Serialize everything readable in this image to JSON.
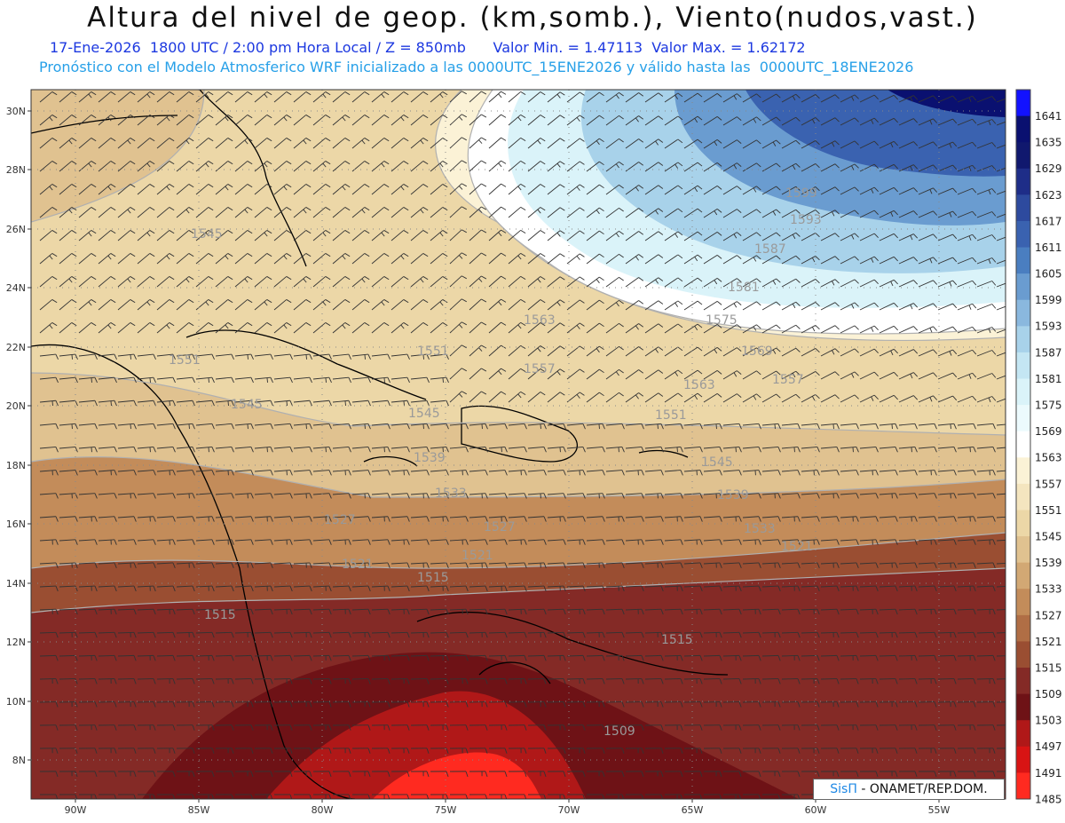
{
  "header": {
    "title": "Altura del nivel de geop. (km,somb.), Viento(nudos,vast.)",
    "line1_left": "17-Ene-2026  1800 UTC / 2:00 pm Hora Local / Z = 850mb",
    "line1_right": "Valor Min. = 1.47113  Valor Max. = 1.62172",
    "line2": "Pronóstico con el Modelo Atmosferico WRF inicializado a las 0000UTC_15ENE2026 y válido hasta las  0000UTC_18ENE2026"
  },
  "axes": {
    "lat_labels": [
      "30N",
      "28N",
      "26N",
      "24N",
      "22N",
      "20N",
      "18N",
      "16N",
      "14N",
      "12N",
      "10N",
      "8N"
    ],
    "lon_labels": [
      "90W",
      "85W",
      "80W",
      "75W",
      "70W",
      "65W",
      "60W",
      "55W"
    ]
  },
  "colorbar": {
    "levels": [
      "1641",
      "1635",
      "1629",
      "1623",
      "1617",
      "1611",
      "1605",
      "1599",
      "1593",
      "1587",
      "1581",
      "1575",
      "1569",
      "1563",
      "1557",
      "1551",
      "1545",
      "1539",
      "1533",
      "1527",
      "1521",
      "1515",
      "1509",
      "1503",
      "1497",
      "1491",
      "1485"
    ],
    "colors": [
      "#1212ff",
      "#0a1070",
      "#10186e",
      "#1e2d88",
      "#2d4a9e",
      "#3a62b0",
      "#4a7ec0",
      "#6a9cd0",
      "#8ab8de",
      "#a8d2ea",
      "#c4e6f3",
      "#daf3f9",
      "#ecfafd",
      "#ffffff",
      "#fbf2d6",
      "#f4e5bf",
      "#ecd7a7",
      "#e0c290",
      "#d2a874",
      "#c38c5a",
      "#b06e45",
      "#9a4e32",
      "#842a26",
      "#6e1216",
      "#b01818",
      "#d81414",
      "#ff2a20"
    ]
  },
  "contour_labels": [
    {
      "text": "1545"
    },
    {
      "text": "1551"
    },
    {
      "text": "1545"
    },
    {
      "text": "1551"
    },
    {
      "text": "1563"
    },
    {
      "text": "1557"
    },
    {
      "text": "1563"
    },
    {
      "text": "1575"
    },
    {
      "text": "1569"
    },
    {
      "text": "1557"
    },
    {
      "text": "1581"
    },
    {
      "text": "1587"
    },
    {
      "text": "1593"
    },
    {
      "text": "1599"
    },
    {
      "text": "1551"
    },
    {
      "text": "1545"
    },
    {
      "text": "1539"
    },
    {
      "text": "1533"
    },
    {
      "text": "1527"
    },
    {
      "text": "1521"
    },
    {
      "text": "1515"
    },
    {
      "text": "1515"
    },
    {
      "text": "1515"
    },
    {
      "text": "1509"
    },
    {
      "text": "1527"
    },
    {
      "text": "1521"
    },
    {
      "text": "1539"
    },
    {
      "text": "1545"
    },
    {
      "text": "1533"
    },
    {
      "text": "1521"
    }
  ],
  "credit": {
    "brand": "SisΠ",
    "org": " - ONAMET/REP.DOM."
  }
}
